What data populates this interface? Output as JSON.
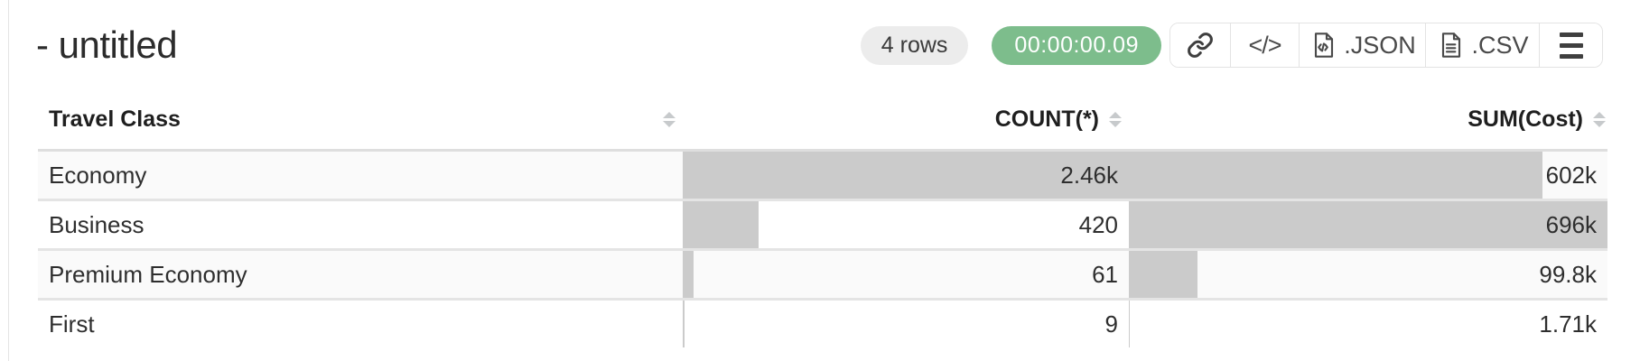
{
  "page": {
    "title": "- untitled"
  },
  "header": {
    "rows_badge": "4 rows",
    "timer": "00:00:00.09",
    "buttons": {
      "code": "</>",
      "json": ".JSON",
      "csv": ".CSV"
    }
  },
  "colors": {
    "timer_bg": "#7dbd8c",
    "badge_bg": "#ececec",
    "bar": "#cbcbcb",
    "stripe": "#fafafa",
    "border": "#e3e3e3",
    "sep": "#e4e4e4"
  },
  "table": {
    "columns": [
      {
        "label": "Travel Class",
        "align": "left",
        "sortable": true
      },
      {
        "label": "COUNT(*)",
        "align": "right",
        "sortable": true
      },
      {
        "label": "SUM(Cost)",
        "align": "right",
        "sortable": true
      }
    ],
    "rows": [
      {
        "label": "Economy",
        "count": 2460,
        "count_display": "2.46k",
        "sum": 602000,
        "sum_display": "602k"
      },
      {
        "label": "Business",
        "count": 420,
        "count_display": "420",
        "sum": 696000,
        "sum_display": "696k"
      },
      {
        "label": "Premium Economy",
        "count": 61,
        "count_display": "61",
        "sum": 99800,
        "sum_display": "99.8k"
      },
      {
        "label": "First",
        "count": 9,
        "count_display": "9",
        "sum": 1710,
        "sum_display": "1.71k"
      }
    ]
  }
}
